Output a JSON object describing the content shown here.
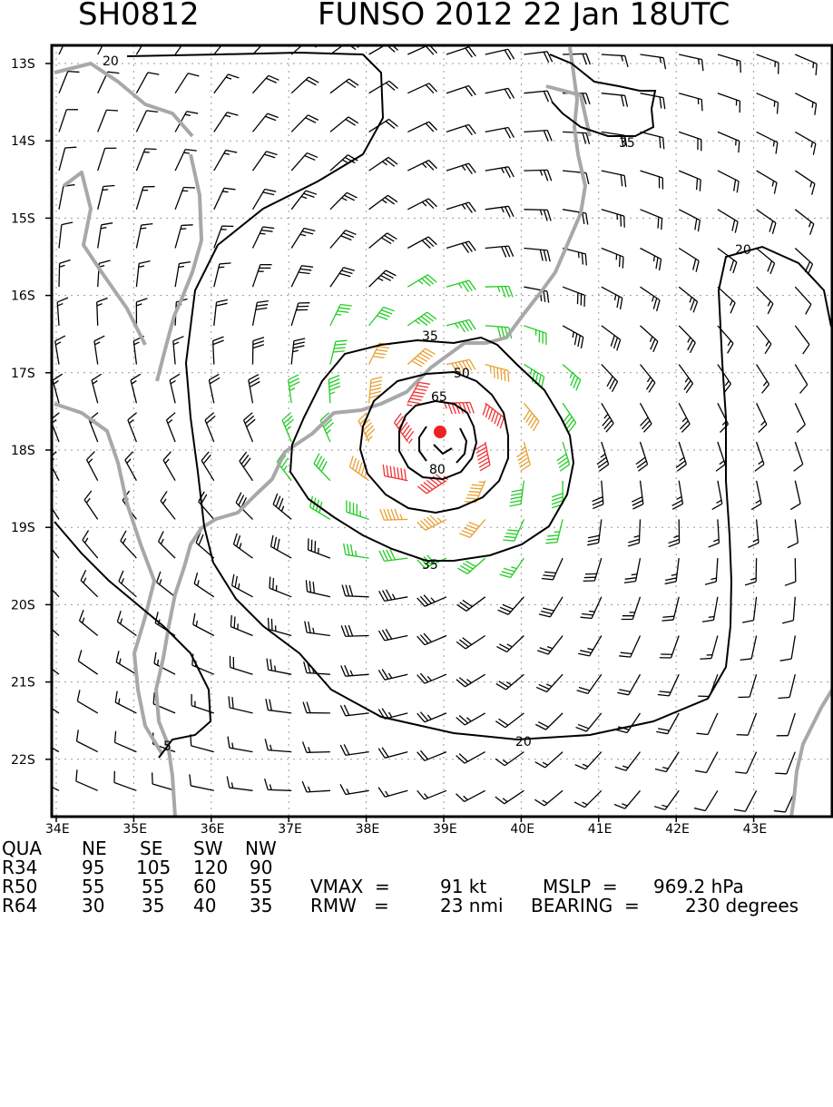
{
  "header": {
    "storm_id": "SH0812",
    "storm_info": "FUNSO 2012 22 Jan 18UTC"
  },
  "map": {
    "lat_labels": [
      "13S",
      "14S",
      "15S",
      "16S",
      "17S",
      "18S",
      "19S",
      "20S",
      "21S",
      "22S"
    ],
    "lon_labels": [
      "34E",
      "35E",
      "36E",
      "37E",
      "38E",
      "39E",
      "40E",
      "41E",
      "42E",
      "43E"
    ],
    "contour_labels": [
      "20",
      "35",
      "20",
      "35",
      "50",
      "65",
      "80",
      "35",
      "20",
      "5"
    ],
    "colors": {
      "coast": "#a8a8a8",
      "contour": "#000000",
      "grid": "#9a9a9a",
      "barb_calm": "#000000",
      "barb_gale": "#22cc22",
      "barb_storm": "#e8a030",
      "barb_hurricane": "#ee3333",
      "center": "#ee2222"
    },
    "storm_center": {
      "lon": 38.9,
      "lat": -17.8
    }
  },
  "stats": {
    "header_row": [
      "QUA",
      "NE",
      "SE",
      "SW",
      "NW"
    ],
    "r34": [
      "R34",
      "95",
      "105",
      "120",
      "90"
    ],
    "r50": [
      "R50",
      "55",
      "55",
      "60",
      "55"
    ],
    "r64": [
      "R64",
      "30",
      "35",
      "40",
      "35"
    ],
    "vmax_label": "VMAX  =",
    "vmax_value": "91 kt",
    "mslp_label": "MSLP  =",
    "mslp_value": "969.2 hPa",
    "rmw_label": "RMW   =",
    "rmw_value": "23 nmi",
    "bearing_label": "BEARING  =",
    "bearing_value": "230 degrees"
  }
}
